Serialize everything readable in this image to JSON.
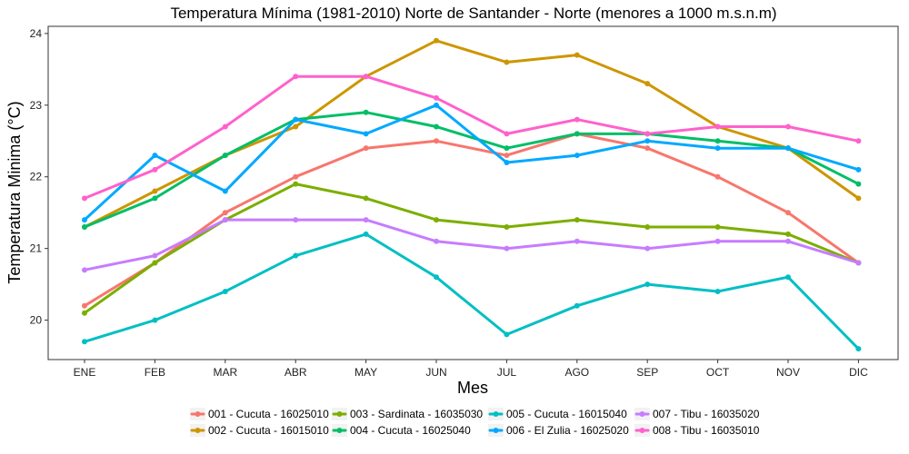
{
  "chart_data": {
    "type": "line",
    "title": "Temperatura Mínima (1981-2010) Norte de Santander - Norte (menores a 1000 m.s.n.m)",
    "xlabel": "Mes",
    "ylabel": "Temperatura Minima (°C)",
    "categories": [
      "ENE",
      "FEB",
      "MAR",
      "ABR",
      "MAY",
      "JUN",
      "JUL",
      "AGO",
      "SEP",
      "OCT",
      "NOV",
      "DIC"
    ],
    "ylim": [
      19.45,
      24.1
    ],
    "yticks": [
      20,
      21,
      22,
      23,
      24
    ],
    "grid": false,
    "legend_position": "bottom",
    "series": [
      {
        "name": "001 - Cucuta - 16025010",
        "color": "#F8766D",
        "values": [
          20.2,
          20.8,
          21.5,
          22.0,
          22.4,
          22.5,
          22.3,
          22.6,
          22.4,
          22.0,
          21.5,
          20.8
        ]
      },
      {
        "name": "002 - Cucuta - 16015010",
        "color": "#CD9600",
        "values": [
          21.3,
          21.8,
          22.3,
          22.7,
          23.4,
          23.9,
          23.6,
          23.7,
          23.3,
          22.7,
          22.4,
          21.7
        ]
      },
      {
        "name": "003 - Sardinata - 16035030",
        "color": "#7CAE00",
        "values": [
          20.1,
          20.8,
          21.4,
          21.9,
          21.7,
          21.4,
          21.3,
          21.4,
          21.3,
          21.3,
          21.2,
          20.8
        ]
      },
      {
        "name": "004 - Cucuta - 16025040",
        "color": "#00BE67",
        "values": [
          21.3,
          21.7,
          22.3,
          22.8,
          22.9,
          22.7,
          22.4,
          22.6,
          22.6,
          22.5,
          22.4,
          21.9
        ]
      },
      {
        "name": "005 - Cucuta - 16015040",
        "color": "#00BFC4",
        "values": [
          19.7,
          20.0,
          20.4,
          20.9,
          21.2,
          20.6,
          19.8,
          20.2,
          20.5,
          20.4,
          20.6,
          19.6
        ]
      },
      {
        "name": "006 - El Zulia - 16025020",
        "color": "#00A9FF",
        "values": [
          21.4,
          22.3,
          21.8,
          22.8,
          22.6,
          23.0,
          22.2,
          22.3,
          22.5,
          22.4,
          22.4,
          22.1
        ]
      },
      {
        "name": "007 - Tibu - 16035020",
        "color": "#C77CFF",
        "values": [
          20.7,
          20.9,
          21.4,
          21.4,
          21.4,
          21.1,
          21.0,
          21.1,
          21.0,
          21.1,
          21.1,
          20.8
        ]
      },
      {
        "name": "008 - Tibu - 16035010",
        "color": "#FF61CC",
        "values": [
          21.7,
          22.1,
          22.7,
          23.4,
          23.4,
          23.1,
          22.6,
          22.8,
          22.6,
          22.7,
          22.7,
          22.5
        ]
      }
    ]
  }
}
